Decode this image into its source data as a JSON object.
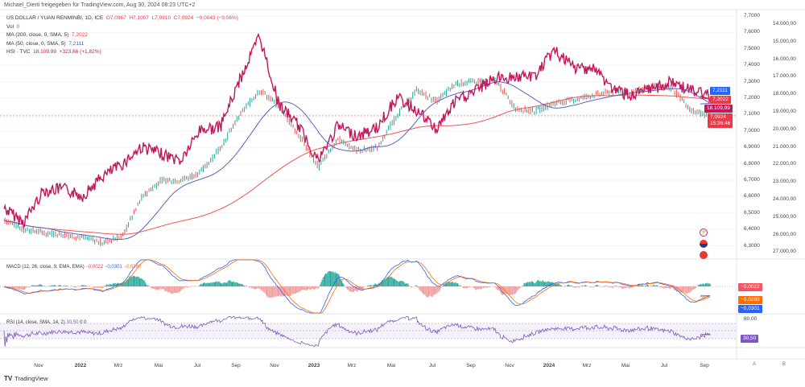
{
  "header": {
    "publisher": "Michael_Dierti freigegeben für TradingView.com, Aug 30, 2024 08:23 UTC+2"
  },
  "legend": {
    "symbol": "US DOLLAR / YUAN RENMINBI, 1D, ICE",
    "o": "O7,0967",
    "h": "H7,1007",
    "l": "L7,0910",
    "c": "C7,0924",
    "change": "−0,0043 (−0,06%)",
    "vol_label": "Vol",
    "vol_value": "0",
    "ma200_label": "MA (200, close, 0, SMA, 5)",
    "ma200_value": "7,2022",
    "ma50_label": "MA (50, close, 0, SMA, 5)",
    "ma50_value": "7,2111",
    "hsi_label": "HSI · TVC",
    "hsi_value": "18.109,99",
    "hsi_change": "+323,66 (+1,82%)"
  },
  "price_axis": [
    "7,7000",
    "7,6000",
    "7,5000",
    "7,4000",
    "7,3000",
    "7,2000",
    "7,1000",
    "7,0000",
    "6,9000",
    "6,8000",
    "6,7000",
    "6,6000",
    "6,5000",
    "6,4000",
    "6,3000"
  ],
  "hsi_axis": [
    "14.000,00",
    "15.000,00",
    "16.000,00",
    "17.000,00",
    "18.000,00",
    "19.000,00",
    "20.000,00",
    "21.000,00",
    "22.000,00",
    "23.000,00",
    "24.000,00",
    "25.000,00",
    "26.000,00",
    "27.000,00"
  ],
  "tags": {
    "ma50": "7,2111",
    "ma200": "7,2022",
    "price": "7,0924",
    "countdown": "15:36:46",
    "hsi": "18.109,99",
    "macd_hist": "−0,0022",
    "macd_signal": "−0,0280",
    "macd_line": "−0,0301",
    "rsi": "30,50",
    "rsi_upper": "80,00"
  },
  "macd_legend": {
    "label": "MACD (12, 26, close, 9, EMA, EMA)",
    "hist": "−0,0022",
    "macd": "−0,0301",
    "signal": "−0,0280"
  },
  "rsi_legend": {
    "label": "RSI (14, close, SMA, 14, 2)",
    "value": "30,50",
    "a": "0",
    "b": "0"
  },
  "time_axis": [
    "Nov",
    "2022",
    "Mrz",
    "Mai",
    "Jul",
    "Sep",
    "Nov",
    "2023",
    "Mrz",
    "Mai",
    "Jul",
    "Sep",
    "Nov",
    "2024",
    "Mrz",
    "Mai",
    "Jul",
    "Sep"
  ],
  "scale_buttons": {
    "auto": "A",
    "log": "B"
  },
  "footer": {
    "brand": "TradingView"
  },
  "colors": {
    "up": "#26a69a",
    "down": "#ef5350",
    "ma50": "#5b5fc7",
    "ma200": "#ef5350",
    "hsi": "#c2185b",
    "macd": "#2962ff",
    "signal": "#ff6d00",
    "rsi": "#7e57c2"
  },
  "chart_data": {
    "type": "line",
    "x": [
      "2021-09",
      "2021-10",
      "2021-11",
      "2021-12",
      "2022-01",
      "2022-02",
      "2022-03",
      "2022-04",
      "2022-05",
      "2022-06",
      "2022-07",
      "2022-08",
      "2022-09",
      "2022-10",
      "2022-11",
      "2022-12",
      "2023-01",
      "2023-02",
      "2023-03",
      "2023-04",
      "2023-05",
      "2023-06",
      "2023-07",
      "2023-08",
      "2023-09",
      "2023-10",
      "2023-11",
      "2023-12",
      "2024-01",
      "2024-02",
      "2024-03",
      "2024-04",
      "2024-05",
      "2024-06",
      "2024-07",
      "2024-08",
      "2024-08-30"
    ],
    "series": [
      {
        "name": "US DOLLAR / YUAN RENMINBI",
        "values": [
          6.46,
          6.4,
          6.38,
          6.37,
          6.35,
          6.32,
          6.36,
          6.6,
          6.7,
          6.7,
          6.75,
          6.9,
          7.1,
          7.25,
          7.15,
          6.97,
          6.78,
          6.95,
          6.88,
          6.9,
          7.1,
          7.25,
          7.18,
          7.29,
          7.3,
          7.31,
          7.14,
          7.12,
          7.17,
          7.19,
          7.22,
          7.24,
          7.24,
          7.27,
          7.26,
          7.12,
          7.0924
        ]
      },
      {
        "name": "HSI · TVC",
        "values": [
          24500,
          25300,
          23500,
          23400,
          23800,
          22700,
          22000,
          21000,
          21400,
          21800,
          20000,
          19900,
          17200,
          14700,
          18600,
          19800,
          21800,
          19800,
          20400,
          19900,
          18200,
          18900,
          20000,
          18400,
          17800,
          17100,
          17000,
          17000,
          15500,
          16500,
          16500,
          17700,
          18100,
          17700,
          17300,
          17800,
          18109.99
        ]
      }
    ],
    "y_range": [
      6.25,
      7.75
    ],
    "y2_range": [
      13500,
      27500
    ],
    "y2_inverted": true
  }
}
